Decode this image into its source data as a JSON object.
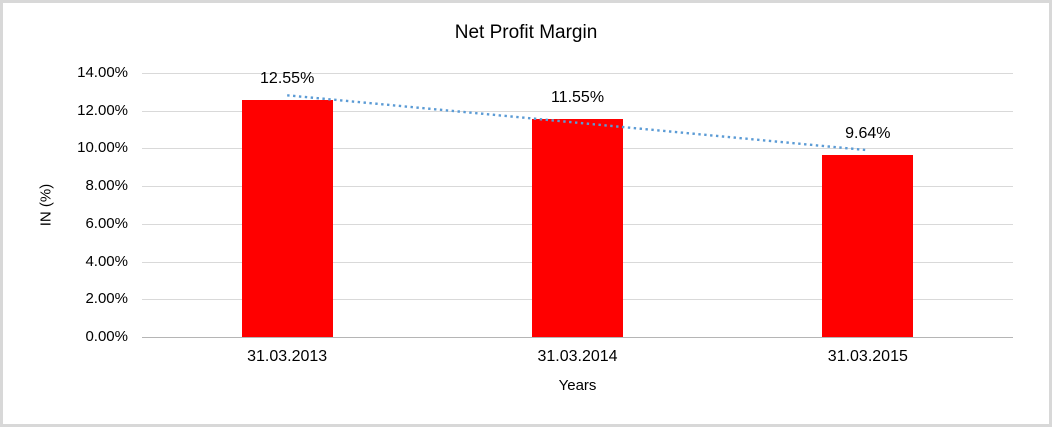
{
  "chart_data": {
    "type": "bar",
    "title": "Net Profit Margin",
    "xlabel": "Years",
    "ylabel": "IN (%)",
    "categories": [
      "31.03.2013",
      "31.03.2014",
      "31.03.2015"
    ],
    "values": [
      12.55,
      11.55,
      9.64
    ],
    "value_labels": [
      "12.55%",
      "11.55%",
      "9.64%"
    ],
    "ylim": [
      0,
      14
    ],
    "yticks": [
      {
        "value": 0,
        "label": "0.00%"
      },
      {
        "value": 2,
        "label": "2.00%"
      },
      {
        "value": 4,
        "label": "4.00%"
      },
      {
        "value": 6,
        "label": "6.00%"
      },
      {
        "value": 8,
        "label": "8.00%"
      },
      {
        "value": 10,
        "label": "10.00%"
      },
      {
        "value": 12,
        "label": "12.00%"
      },
      {
        "value": 14,
        "label": "14.00%"
      }
    ],
    "grid": "horizontal",
    "legend": "none",
    "bar_color": "#FF0000",
    "gridline_color": "#D9D9D9",
    "axis_line_color": "#B5B5B5",
    "trendline": {
      "type": "linear",
      "style": "dotted",
      "color": "#5B9BD5"
    }
  }
}
